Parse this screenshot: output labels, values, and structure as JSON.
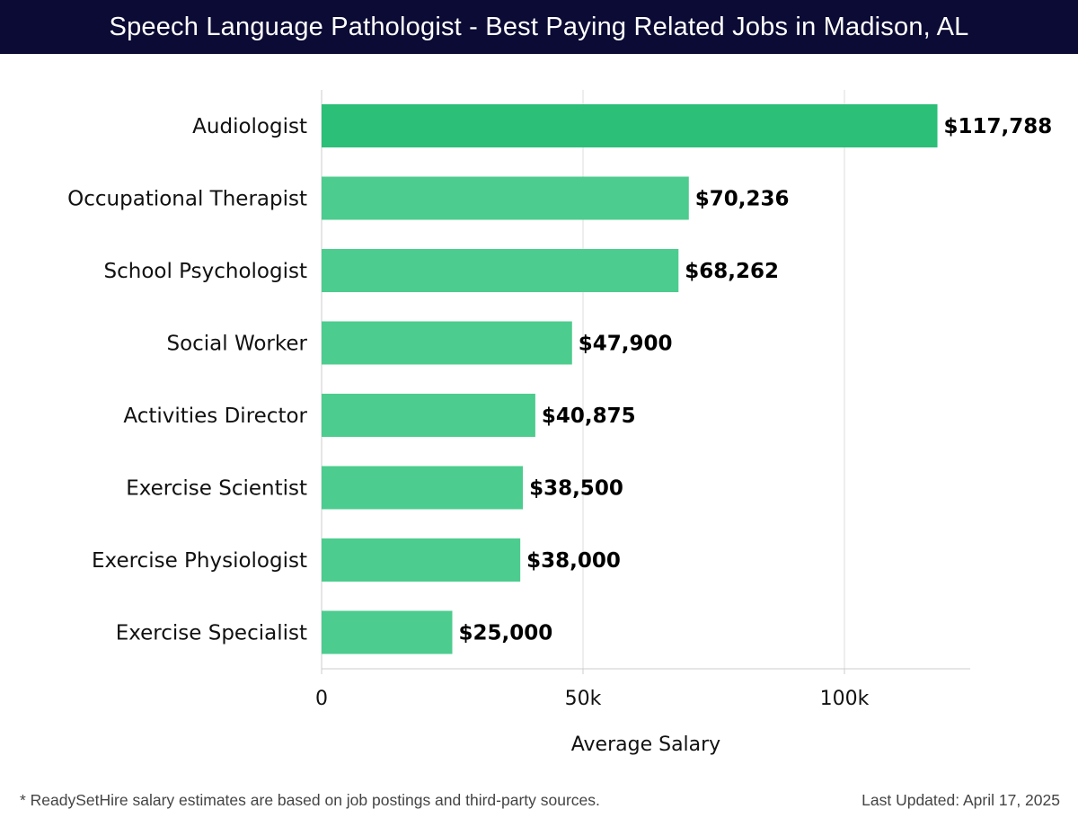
{
  "header": {
    "title": "Speech Language Pathologist - Best Paying Related Jobs in Madison, AL"
  },
  "footer": {
    "note": "* ReadySetHire salary estimates are based on job postings and third-party sources.",
    "updated": "Last Updated: April 17, 2025"
  },
  "colors": {
    "header_bg": "#0b0b35",
    "bar_top": "#2bbf78",
    "bar_rest": "#4ccc8e",
    "grid": "#dddddd",
    "label": "#111111"
  },
  "chart_data": {
    "type": "bar",
    "orientation": "horizontal",
    "title": "Speech Language Pathologist - Best Paying Related Jobs in Madison, AL",
    "xlabel": "Average Salary",
    "ylabel": "",
    "categories": [
      "Audiologist",
      "Occupational Therapist",
      "School Psychologist",
      "Social Worker",
      "Activities Director",
      "Exercise Scientist",
      "Exercise Physiologist",
      "Exercise Specialist"
    ],
    "values": [
      117788,
      70236,
      68262,
      47900,
      40875,
      38500,
      38000,
      25000
    ],
    "value_labels": [
      "$117,788",
      "$70,236",
      "$68,262",
      "$47,900",
      "$40,875",
      "$38,500",
      "$38,000",
      "$25,000"
    ],
    "xticks": [
      0,
      50000,
      100000
    ],
    "xtick_labels": [
      "0",
      "50k",
      "100k"
    ],
    "xlim": [
      0,
      124000
    ],
    "grid": true
  }
}
